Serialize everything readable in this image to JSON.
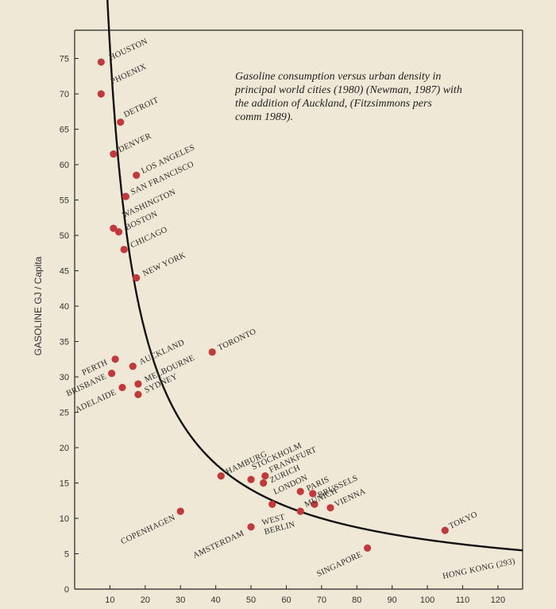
{
  "chart_data": {
    "type": "scatter",
    "title": "",
    "annotation": [
      "Gasoline consumption versus urban density in",
      "principal world cities (1980) (Newman, 1987) with",
      "the addition of Auckland, (Fitzsimmons pers",
      "comm 1989)."
    ],
    "xlabel": "",
    "ylabel": "GASOLINE GJ / Capita",
    "xlim": [
      0,
      127
    ],
    "ylim": [
      0,
      79
    ],
    "xticks": [
      10,
      20,
      30,
      40,
      50,
      60,
      70,
      80,
      90,
      100,
      110,
      120
    ],
    "yticks": [
      0,
      5,
      10,
      15,
      20,
      25,
      30,
      35,
      40,
      45,
      50,
      55,
      60,
      65,
      70,
      75
    ],
    "grid": false,
    "colors": {
      "point": "#c0393b",
      "curve": "#111111",
      "background": "#efe8d6"
    },
    "curve": {
      "formula": "y = 690 / (x - 1)",
      "x_start": 9.15
    },
    "points": [
      {
        "label": "HOUSTON",
        "x": 7.5,
        "y": 74.5
      },
      {
        "label": "PHOENIX",
        "x": 7.5,
        "y": 70
      },
      {
        "label": "DETROIT",
        "x": 13,
        "y": 66
      },
      {
        "label": "DENVER",
        "x": 11,
        "y": 61.5
      },
      {
        "label": "LOS ANGELES",
        "x": 17.5,
        "y": 58.5
      },
      {
        "label": "SAN FRANCISCO",
        "x": 14.5,
        "y": 55.5
      },
      {
        "label": "WASHINGTON",
        "x": 11,
        "y": 51
      },
      {
        "label": "BOSTON",
        "x": 12.5,
        "y": 50.5
      },
      {
        "label": "CHICAGO",
        "x": 14,
        "y": 48
      },
      {
        "label": "NEW YORK",
        "x": 17.5,
        "y": 44
      },
      {
        "label": "TORONTO",
        "x": 39,
        "y": 33.5
      },
      {
        "label": "PERTH",
        "x": 11.5,
        "y": 32.5
      },
      {
        "label": "AUCKLAND",
        "x": 16.5,
        "y": 31.5
      },
      {
        "label": "BRISBANE",
        "x": 10.5,
        "y": 30.5
      },
      {
        "label": "MELBOURNE",
        "x": 18,
        "y": 29
      },
      {
        "label": "ADELAIDE",
        "x": 13.5,
        "y": 28.5
      },
      {
        "label": "SYDNEY",
        "x": 18,
        "y": 27.5
      },
      {
        "label": "HAMBURG",
        "x": 41.5,
        "y": 16
      },
      {
        "label": "STOCKHOLM",
        "x": 50,
        "y": 15.5
      },
      {
        "label": "FRANKFURT",
        "x": 54,
        "y": 16
      },
      {
        "label": "ZURICH",
        "x": 53.5,
        "y": 15
      },
      {
        "label": "LONDON",
        "x": 64,
        "y": 13.8
      },
      {
        "label": "PARIS",
        "x": 67.5,
        "y": 13.5
      },
      {
        "label": "BRUSSELS",
        "x": 68,
        "y": 12
      },
      {
        "label": "MUNICH",
        "x": 64,
        "y": 11
      },
      {
        "label": "VIENNA",
        "x": 72.5,
        "y": 11.5
      },
      {
        "label": "COPENHAGEN",
        "x": 30,
        "y": 11
      },
      {
        "label": "AMSTERDAM",
        "x": 50,
        "y": 8.8
      },
      {
        "label": "WEST BERLIN",
        "x": 56,
        "y": 12
      },
      {
        "label": "TOKYO",
        "x": 105,
        "y": 8.3
      },
      {
        "label": "SINGAPORE",
        "x": 83,
        "y": 5.8
      }
    ],
    "off_chart_note": "HONG KONG (293)"
  }
}
